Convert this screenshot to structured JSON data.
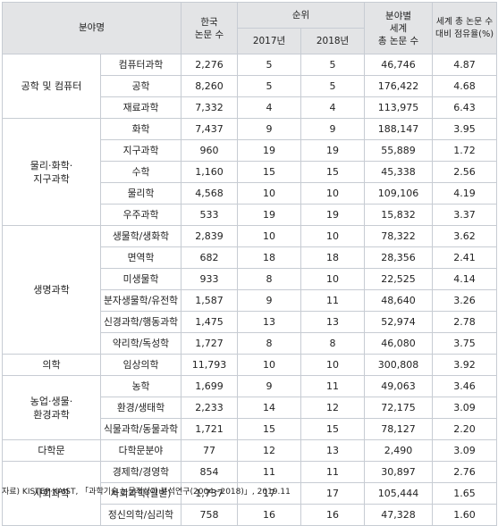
{
  "header": {
    "field": "분야명",
    "korea_papers": "한국\n논문 수",
    "rank": "순위",
    "year_2017": "2017년",
    "year_2018": "2018년",
    "world_papers": "분야별\n세계\n총 논문 수",
    "share": "세계 총 논문 수\n대비 점유율(%)"
  },
  "groups": [
    {
      "name": "공학 및 컴퓨터",
      "rows": [
        {
          "sub": "컴퓨터과학",
          "korea": "2,276",
          "r2017": "5",
          "r2018": "5",
          "world": "46,746",
          "share": "4.87"
        },
        {
          "sub": "공학",
          "korea": "8,260",
          "r2017": "5",
          "r2018": "5",
          "world": "176,422",
          "share": "4.68"
        },
        {
          "sub": "재료과학",
          "korea": "7,332",
          "r2017": "4",
          "r2018": "4",
          "world": "113,975",
          "share": "6.43"
        }
      ]
    },
    {
      "name": "물리·화학·\n지구과학",
      "rows": [
        {
          "sub": "화학",
          "korea": "7,437",
          "r2017": "9",
          "r2018": "9",
          "world": "188,147",
          "share": "3.95"
        },
        {
          "sub": "지구과학",
          "korea": "960",
          "r2017": "19",
          "r2018": "19",
          "world": "55,889",
          "share": "1.72"
        },
        {
          "sub": "수학",
          "korea": "1,160",
          "r2017": "15",
          "r2018": "15",
          "world": "45,338",
          "share": "2.56"
        },
        {
          "sub": "물리학",
          "korea": "4,568",
          "r2017": "10",
          "r2018": "10",
          "world": "109,106",
          "share": "4.19"
        },
        {
          "sub": "우주과학",
          "korea": "533",
          "r2017": "19",
          "r2018": "19",
          "world": "15,832",
          "share": "3.37"
        }
      ]
    },
    {
      "name": "생명과학",
      "rows": [
        {
          "sub": "생물학/생화학",
          "korea": "2,839",
          "r2017": "10",
          "r2018": "10",
          "world": "78,322",
          "share": "3.62"
        },
        {
          "sub": "면역학",
          "korea": "682",
          "r2017": "18",
          "r2018": "18",
          "world": "28,356",
          "share": "2.41"
        },
        {
          "sub": "미생물학",
          "korea": "933",
          "r2017": "8",
          "r2018": "10",
          "world": "22,525",
          "share": "4.14"
        },
        {
          "sub": "분자생물학/유전학",
          "korea": "1,587",
          "r2017": "9",
          "r2018": "11",
          "world": "48,640",
          "share": "3.26"
        },
        {
          "sub": "신경과학/행동과학",
          "korea": "1,475",
          "r2017": "13",
          "r2018": "13",
          "world": "52,974",
          "share": "2.78"
        },
        {
          "sub": "약리학/독성학",
          "korea": "1,727",
          "r2017": "8",
          "r2018": "8",
          "world": "46,080",
          "share": "3.75"
        }
      ]
    },
    {
      "name": "의학",
      "rows": [
        {
          "sub": "임상의학",
          "korea": "11,793",
          "r2017": "10",
          "r2018": "10",
          "world": "300,808",
          "share": "3.92"
        }
      ]
    },
    {
      "name": "농업·생물·\n환경과학",
      "rows": [
        {
          "sub": "농학",
          "korea": "1,699",
          "r2017": "9",
          "r2018": "11",
          "world": "49,063",
          "share": "3.46"
        },
        {
          "sub": "환경/생태학",
          "korea": "2,233",
          "r2017": "14",
          "r2018": "12",
          "world": "72,175",
          "share": "3.09"
        },
        {
          "sub": "식물과학/동물과학",
          "korea": "1,721",
          "r2017": "15",
          "r2018": "15",
          "world": "78,127",
          "share": "2.20"
        }
      ]
    },
    {
      "name": "다학문",
      "rows": [
        {
          "sub": "다학문분야",
          "korea": "77",
          "r2017": "12",
          "r2018": "13",
          "world": "2,490",
          "share": "3.09"
        }
      ]
    },
    {
      "name": "사회과학",
      "rows": [
        {
          "sub": "경제학/경영학",
          "korea": "854",
          "r2017": "11",
          "r2018": "11",
          "world": "30,897",
          "share": "2.76"
        },
        {
          "sub": "사회과학(일반)",
          "korea": "1,737",
          "r2017": "17",
          "r2018": "17",
          "world": "105,444",
          "share": "1.65"
        },
        {
          "sub": "정신의학/심리학",
          "korea": "758",
          "r2017": "16",
          "r2018": "16",
          "world": "47,328",
          "share": "1.60"
        }
      ]
    }
  ],
  "source": "자료) KISTEP·KAIST, 「과학기술 논문적성과 분석연구(2004~2018)」, 2019.11"
}
